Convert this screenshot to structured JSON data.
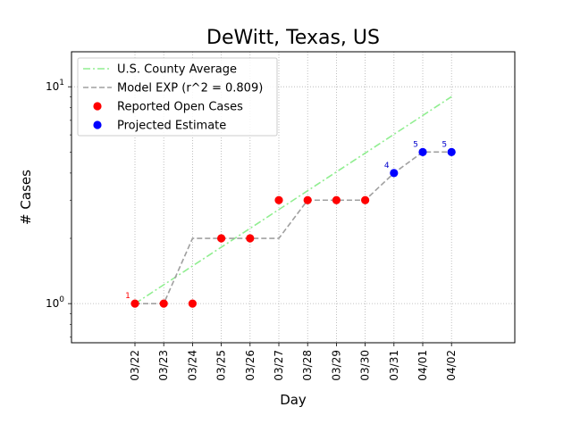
{
  "chart_data": {
    "type": "line",
    "title": "DeWitt, Texas, US",
    "xlabel": "Day",
    "ylabel": "# Cases",
    "yscale": "log",
    "ylim": [
      0.66,
      14.5
    ],
    "yticks": [
      {
        "value": 1,
        "label": "10^0"
      },
      {
        "value": 10,
        "label": "10^1"
      }
    ],
    "categories": [
      "03/22",
      "03/23",
      "03/24",
      "03/25",
      "03/26",
      "03/27",
      "03/28",
      "03/29",
      "03/30",
      "03/31",
      "04/01",
      "04/02"
    ],
    "grid": true,
    "legend_position": "top-left",
    "series": [
      {
        "name": "U.S. County Average",
        "style": "dash-dot",
        "color": "#90ee90",
        "x": [
          "03/22",
          "04/02"
        ],
        "values": [
          1.0,
          9.0
        ]
      },
      {
        "name": "Model EXP (r^2 = 0.809)",
        "style": "dashed",
        "color": "#a0a0a0",
        "x": [
          "03/22",
          "03/23",
          "03/24",
          "03/25",
          "03/26",
          "03/27",
          "03/28",
          "03/29",
          "03/30",
          "03/31",
          "04/01",
          "04/02"
        ],
        "values": [
          1,
          1,
          2,
          2,
          2,
          2,
          3,
          3,
          3,
          4,
          5,
          5
        ]
      },
      {
        "name": "Reported Open Cases",
        "style": "marker",
        "color": "#ff0000",
        "x": [
          "03/22",
          "03/23",
          "03/24",
          "03/25",
          "03/26",
          "03/27",
          "03/28",
          "03/29",
          "03/30"
        ],
        "values": [
          1,
          1,
          1,
          2,
          2,
          3,
          3,
          3,
          3
        ]
      },
      {
        "name": "Projected Estimate",
        "style": "marker",
        "color": "#0000ff",
        "x": [
          "03/31",
          "04/01",
          "04/02"
        ],
        "values": [
          4,
          5,
          5
        ]
      }
    ],
    "annotations": [
      {
        "x": "03/22",
        "y": 1,
        "text": "1",
        "color": "#ff0000"
      },
      {
        "x": "03/31",
        "y": 4,
        "text": "4",
        "color": "#0000cc"
      },
      {
        "x": "04/01",
        "y": 5,
        "text": "5",
        "color": "#0000cc"
      },
      {
        "x": "04/02",
        "y": 5,
        "text": "5",
        "color": "#0000cc"
      }
    ]
  }
}
